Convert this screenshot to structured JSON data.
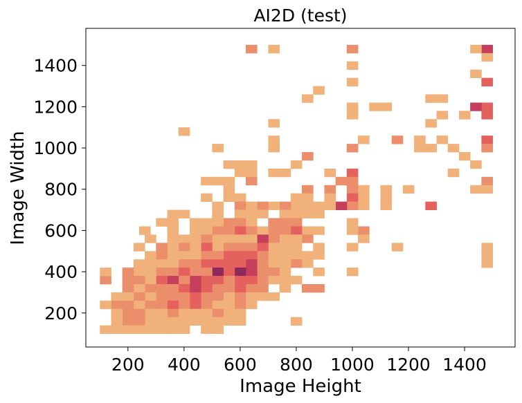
{
  "chart_data": {
    "type": "heatmap",
    "title": "AI2D (test)",
    "xlabel": "Image Height",
    "ylabel": "Image Width",
    "xlim": [
      50,
      1580
    ],
    "ylim": [
      35,
      1580
    ],
    "xticks": [
      200,
      400,
      600,
      800,
      1000,
      1200,
      1400
    ],
    "yticks": [
      200,
      400,
      600,
      800,
      1000,
      1200,
      1400
    ],
    "bin_size": [
      40,
      40
    ],
    "grid": false,
    "legend": "none",
    "colormap": [
      "#f0b27a",
      "#eb8e6b",
      "#e5615e",
      "#c53f5c",
      "#8d2a5b",
      "#4e1d4a"
    ],
    "cells": [
      [
        1480,
        1480,
        4
      ],
      [
        1480,
        1440,
        1
      ],
      [
        1480,
        1320,
        3
      ],
      [
        1480,
        1200,
        3
      ],
      [
        1480,
        1160,
        3
      ],
      [
        1480,
        1040,
        3
      ],
      [
        1480,
        1000,
        2
      ],
      [
        1480,
        840,
        2
      ],
      [
        1480,
        800,
        1
      ],
      [
        1480,
        520,
        1
      ],
      [
        1480,
        480,
        1
      ],
      [
        1480,
        440,
        1
      ],
      [
        1440,
        1480,
        1
      ],
      [
        1440,
        1360,
        1
      ],
      [
        1440,
        1200,
        4
      ],
      [
        1440,
        920,
        1
      ],
      [
        1440,
        800,
        1
      ],
      [
        1400,
        960,
        1
      ],
      [
        1400,
        1160,
        1
      ],
      [
        1360,
        880,
        1
      ],
      [
        1360,
        1000,
        1
      ],
      [
        1320,
        1240,
        1
      ],
      [
        1320,
        1160,
        1
      ],
      [
        1320,
        1040,
        1
      ],
      [
        1280,
        1000,
        1
      ],
      [
        1240,
        1000,
        1
      ],
      [
        1280,
        1240,
        1
      ],
      [
        1280,
        1120,
        1
      ],
      [
        1280,
        720,
        3
      ],
      [
        1240,
        1040,
        1
      ],
      [
        1200,
        800,
        1
      ],
      [
        1160,
        1040,
        2
      ],
      [
        1160,
        520,
        1
      ],
      [
        1120,
        800,
        1
      ],
      [
        1120,
        760,
        1
      ],
      [
        1120,
        720,
        1
      ],
      [
        1120,
        1200,
        1
      ],
      [
        1080,
        1200,
        1
      ],
      [
        1040,
        1040,
        1
      ],
      [
        1040,
        800,
        1
      ],
      [
        1040,
        760,
        1
      ],
      [
        1040,
        720,
        1
      ],
      [
        1040,
        600,
        2
      ],
      [
        1040,
        560,
        1
      ],
      [
        1000,
        1480,
        2
      ],
      [
        1000,
        1400,
        1
      ],
      [
        1000,
        1320,
        1
      ],
      [
        1000,
        1200,
        1
      ],
      [
        1000,
        1160,
        1
      ],
      [
        1000,
        1000,
        2
      ],
      [
        1000,
        880,
        3
      ],
      [
        1000,
        840,
        2
      ],
      [
        1000,
        800,
        2
      ],
      [
        1000,
        760,
        3
      ],
      [
        1000,
        720,
        2
      ],
      [
        1000,
        640,
        1
      ],
      [
        1000,
        600,
        1
      ],
      [
        1000,
        520,
        1
      ],
      [
        1000,
        400,
        1
      ],
      [
        960,
        720,
        4
      ],
      [
        960,
        840,
        2
      ],
      [
        920,
        800,
        2
      ],
      [
        920,
        760,
        1
      ],
      [
        920,
        720,
        1
      ],
      [
        920,
        880,
        1
      ],
      [
        880,
        1280,
        1
      ],
      [
        840,
        1240,
        1
      ],
      [
        960,
        720,
        4
      ],
      [
        880,
        720,
        1
      ],
      [
        880,
        680,
        1
      ],
      [
        880,
        600,
        1
      ],
      [
        880,
        520,
        1
      ],
      [
        880,
        480,
        1
      ],
      [
        880,
        400,
        1
      ],
      [
        880,
        320,
        2
      ],
      [
        840,
        960,
        2
      ],
      [
        840,
        800,
        2
      ],
      [
        840,
        760,
        1
      ],
      [
        840,
        720,
        1
      ],
      [
        840,
        680,
        1
      ],
      [
        840,
        600,
        1
      ],
      [
        840,
        560,
        2
      ],
      [
        840,
        480,
        1
      ],
      [
        840,
        440,
        1
      ],
      [
        840,
        320,
        2
      ],
      [
        800,
        920,
        1
      ],
      [
        800,
        760,
        1
      ],
      [
        800,
        720,
        1
      ],
      [
        800,
        680,
        1
      ],
      [
        800,
        640,
        2
      ],
      [
        800,
        600,
        3
      ],
      [
        800,
        560,
        1
      ],
      [
        800,
        520,
        1
      ],
      [
        800,
        480,
        1
      ],
      [
        800,
        440,
        2
      ],
      [
        800,
        360,
        1
      ],
      [
        800,
        160,
        1
      ],
      [
        760,
        880,
        1
      ],
      [
        760,
        720,
        2
      ],
      [
        760,
        680,
        1
      ],
      [
        760,
        640,
        2
      ],
      [
        760,
        600,
        2
      ],
      [
        760,
        560,
        1
      ],
      [
        760,
        520,
        1
      ],
      [
        760,
        480,
        1
      ],
      [
        760,
        440,
        1
      ],
      [
        760,
        400,
        1
      ],
      [
        760,
        360,
        1
      ],
      [
        760,
        320,
        1
      ],
      [
        720,
        1480,
        1
      ],
      [
        720,
        1120,
        1
      ],
      [
        720,
        1040,
        1
      ],
      [
        720,
        1000,
        1
      ],
      [
        720,
        880,
        1
      ],
      [
        720,
        720,
        1
      ],
      [
        720,
        640,
        2
      ],
      [
        720,
        600,
        2
      ],
      [
        720,
        560,
        2
      ],
      [
        720,
        520,
        1
      ],
      [
        720,
        480,
        1
      ],
      [
        720,
        440,
        1
      ],
      [
        720,
        400,
        2
      ],
      [
        720,
        360,
        1
      ],
      [
        720,
        280,
        1
      ],
      [
        680,
        720,
        2
      ],
      [
        680,
        680,
        1
      ],
      [
        680,
        600,
        1
      ],
      [
        680,
        560,
        4
      ],
      [
        680,
        520,
        3
      ],
      [
        680,
        480,
        2
      ],
      [
        680,
        440,
        2
      ],
      [
        680,
        400,
        2
      ],
      [
        680,
        360,
        2
      ],
      [
        680,
        320,
        2
      ],
      [
        680,
        280,
        1
      ],
      [
        640,
        1480,
        2
      ],
      [
        640,
        920,
        1
      ],
      [
        640,
        880,
        1
      ],
      [
        640,
        840,
        2
      ],
      [
        640,
        720,
        1
      ],
      [
        640,
        680,
        1
      ],
      [
        640,
        640,
        1
      ],
      [
        640,
        600,
        2
      ],
      [
        640,
        560,
        1
      ],
      [
        640,
        520,
        2
      ],
      [
        640,
        480,
        3
      ],
      [
        640,
        440,
        4
      ],
      [
        640,
        400,
        4
      ],
      [
        640,
        360,
        3
      ],
      [
        640,
        320,
        2
      ],
      [
        640,
        280,
        1
      ],
      [
        640,
        240,
        1
      ],
      [
        600,
        920,
        1
      ],
      [
        600,
        880,
        1
      ],
      [
        600,
        760,
        1
      ],
      [
        600,
        720,
        2
      ],
      [
        600,
        680,
        1
      ],
      [
        600,
        640,
        2
      ],
      [
        600,
        600,
        3
      ],
      [
        600,
        560,
        1
      ],
      [
        600,
        520,
        2
      ],
      [
        600,
        480,
        3
      ],
      [
        600,
        440,
        3
      ],
      [
        600,
        400,
        5
      ],
      [
        600,
        360,
        3
      ],
      [
        600,
        320,
        3
      ],
      [
        600,
        280,
        2
      ],
      [
        600,
        240,
        2
      ],
      [
        600,
        200,
        1
      ],
      [
        600,
        160,
        1
      ],
      [
        560,
        920,
        1
      ],
      [
        560,
        840,
        1
      ],
      [
        560,
        800,
        1
      ],
      [
        560,
        760,
        1
      ],
      [
        560,
        640,
        2
      ],
      [
        560,
        600,
        2
      ],
      [
        560,
        560,
        1
      ],
      [
        560,
        520,
        2
      ],
      [
        560,
        480,
        3
      ],
      [
        560,
        440,
        3
      ],
      [
        560,
        400,
        3
      ],
      [
        560,
        360,
        2
      ],
      [
        560,
        320,
        2
      ],
      [
        560,
        280,
        1
      ],
      [
        560,
        240,
        1
      ],
      [
        560,
        200,
        1
      ],
      [
        560,
        160,
        1
      ],
      [
        520,
        1000,
        1
      ],
      [
        520,
        840,
        1
      ],
      [
        520,
        720,
        1
      ],
      [
        520,
        680,
        1
      ],
      [
        520,
        640,
        1
      ],
      [
        520,
        600,
        2
      ],
      [
        520,
        560,
        1
      ],
      [
        520,
        520,
        1
      ],
      [
        520,
        480,
        2
      ],
      [
        520,
        440,
        3
      ],
      [
        520,
        400,
        5
      ],
      [
        520,
        360,
        3
      ],
      [
        520,
        320,
        2
      ],
      [
        520,
        280,
        2
      ],
      [
        520,
        240,
        1
      ],
      [
        520,
        200,
        2
      ],
      [
        520,
        160,
        1
      ],
      [
        520,
        120,
        1
      ],
      [
        480,
        840,
        1
      ],
      [
        480,
        760,
        1
      ],
      [
        480,
        640,
        1
      ],
      [
        480,
        600,
        1
      ],
      [
        480,
        560,
        2
      ],
      [
        480,
        520,
        3
      ],
      [
        480,
        480,
        2
      ],
      [
        480,
        440,
        3
      ],
      [
        480,
        400,
        2
      ],
      [
        480,
        360,
        3
      ],
      [
        480,
        320,
        3
      ],
      [
        480,
        280,
        2
      ],
      [
        480,
        240,
        2
      ],
      [
        480,
        200,
        1
      ],
      [
        480,
        160,
        1
      ],
      [
        480,
        120,
        1
      ],
      [
        440,
        640,
        1
      ],
      [
        440,
        600,
        1
      ],
      [
        440,
        560,
        1
      ],
      [
        440,
        520,
        1
      ],
      [
        440,
        480,
        1
      ],
      [
        440,
        440,
        2
      ],
      [
        440,
        400,
        2
      ],
      [
        440,
        360,
        4
      ],
      [
        440,
        320,
        4
      ],
      [
        440,
        280,
        3
      ],
      [
        440,
        240,
        3
      ],
      [
        440,
        200,
        1
      ],
      [
        440,
        160,
        1
      ],
      [
        400,
        1080,
        1
      ],
      [
        400,
        680,
        1
      ],
      [
        400,
        560,
        1
      ],
      [
        400,
        520,
        2
      ],
      [
        400,
        480,
        1
      ],
      [
        400,
        440,
        2
      ],
      [
        400,
        400,
        3
      ],
      [
        400,
        360,
        2
      ],
      [
        400,
        320,
        3
      ],
      [
        400,
        280,
        2
      ],
      [
        400,
        240,
        2
      ],
      [
        400,
        200,
        1
      ],
      [
        400,
        160,
        1
      ],
      [
        400,
        120,
        1
      ],
      [
        360,
        680,
        1
      ],
      [
        360,
        640,
        1
      ],
      [
        360,
        600,
        1
      ],
      [
        360,
        560,
        1
      ],
      [
        360,
        520,
        1
      ],
      [
        360,
        480,
        1
      ],
      [
        360,
        440,
        1
      ],
      [
        360,
        400,
        2
      ],
      [
        360,
        360,
        4
      ],
      [
        360,
        320,
        2
      ],
      [
        360,
        280,
        2
      ],
      [
        360,
        240,
        3
      ],
      [
        360,
        200,
        2
      ],
      [
        360,
        160,
        1
      ],
      [
        360,
        120,
        1
      ],
      [
        320,
        640,
        1
      ],
      [
        320,
        520,
        2
      ],
      [
        320,
        480,
        2
      ],
      [
        320,
        440,
        1
      ],
      [
        320,
        400,
        2
      ],
      [
        320,
        360,
        3
      ],
      [
        320,
        320,
        2
      ],
      [
        320,
        280,
        2
      ],
      [
        320,
        240,
        2
      ],
      [
        320,
        200,
        1
      ],
      [
        320,
        160,
        1
      ],
      [
        320,
        120,
        1
      ],
      [
        280,
        480,
        1
      ],
      [
        280,
        440,
        1
      ],
      [
        280,
        400,
        1
      ],
      [
        280,
        360,
        1
      ],
      [
        280,
        320,
        2
      ],
      [
        280,
        280,
        1
      ],
      [
        280,
        240,
        2
      ],
      [
        280,
        200,
        1
      ],
      [
        280,
        160,
        1
      ],
      [
        280,
        120,
        1
      ],
      [
        240,
        440,
        1
      ],
      [
        240,
        400,
        1
      ],
      [
        240,
        360,
        2
      ],
      [
        240,
        320,
        1
      ],
      [
        240,
        280,
        2
      ],
      [
        240,
        240,
        1
      ],
      [
        240,
        200,
        2
      ],
      [
        240,
        160,
        2
      ],
      [
        240,
        120,
        1
      ],
      [
        200,
        400,
        2
      ],
      [
        200,
        360,
        2
      ],
      [
        200,
        320,
        2
      ],
      [
        200,
        280,
        1
      ],
      [
        200,
        240,
        2
      ],
      [
        200,
        200,
        2
      ],
      [
        200,
        160,
        2
      ],
      [
        200,
        120,
        1
      ],
      [
        160,
        280,
        1
      ],
      [
        160,
        240,
        2
      ],
      [
        160,
        200,
        1
      ],
      [
        160,
        160,
        1
      ],
      [
        160,
        120,
        1
      ],
      [
        120,
        360,
        2
      ],
      [
        120,
        400,
        1
      ],
      [
        120,
        240,
        1
      ],
      [
        120,
        120,
        1
      ],
      [
        260,
        600,
        1
      ],
      [
        280,
        560,
        1
      ],
      [
        240,
        520,
        1
      ]
    ]
  }
}
